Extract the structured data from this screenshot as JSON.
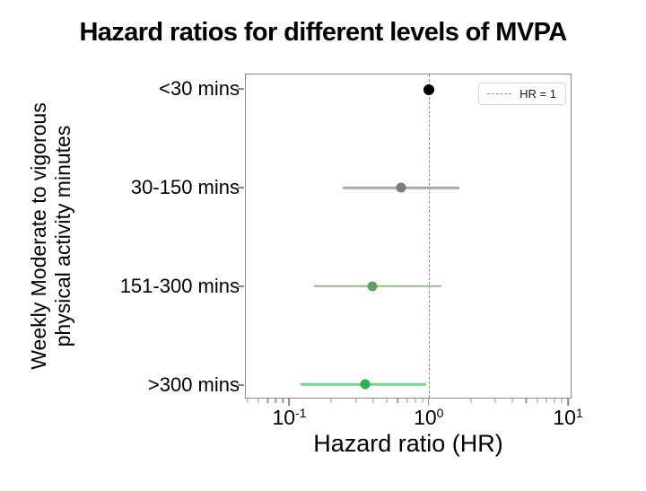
{
  "title": "Hazard ratios for different levels of MVPA",
  "chart_data": {
    "type": "scatter",
    "subtype": "forest-plot",
    "title": "Hazard ratios for different levels of MVPA",
    "xlabel": "Hazard ratio (HR)",
    "ylabel_line1": "Weekly Moderate to vigorous",
    "ylabel_line2": "physical activity minutes",
    "x_scale": "log10",
    "xlim": [
      0.048,
      10.6
    ],
    "grid": false,
    "categories": [
      "<30 mins",
      "30-150 mins",
      "151-300 mins",
      ">300 mins"
    ],
    "series": [
      {
        "label": "<30 mins",
        "hr": 1.0,
        "ci_low": 1.0,
        "ci_high": 1.0,
        "point_color": "#000000",
        "bar_color": "#000000",
        "point_size": 12
      },
      {
        "label": "30-150 mins",
        "hr": 0.63,
        "ci_low": 0.24,
        "ci_high": 1.66,
        "point_color": "#7d7d7d",
        "bar_color": "#a9a9a9",
        "point_size": 11
      },
      {
        "label": "151-300 mins",
        "hr": 0.39,
        "ci_low": 0.15,
        "ci_high": 1.23,
        "point_color": "#699b67",
        "bar_color": "#96ba94",
        "point_size": 11
      },
      {
        "label": ">300 mins",
        "hr": 0.35,
        "ci_low": 0.12,
        "ci_high": 0.96,
        "point_color": "#2bb44a",
        "bar_color": "#74d48e",
        "point_size": 11
      }
    ],
    "reference_line": {
      "value": 1.0,
      "color": "#8f8f8f",
      "style": "dashed"
    },
    "legend": {
      "label": "HR = 1",
      "line_color": "#8f8f8f",
      "position": "upper right"
    },
    "x_major_ticks": [
      {
        "value": 0.1,
        "base": "10",
        "exp": "-1"
      },
      {
        "value": 1,
        "base": "10",
        "exp": "0"
      },
      {
        "value": 10,
        "base": "10",
        "exp": "1"
      }
    ],
    "x_minor_ticks": [
      0.05,
      0.06,
      0.07,
      0.08,
      0.09,
      0.2,
      0.3,
      0.4,
      0.5,
      0.6,
      0.7,
      0.8,
      0.9,
      2,
      3,
      4,
      5,
      6,
      7,
      8,
      9
    ]
  }
}
